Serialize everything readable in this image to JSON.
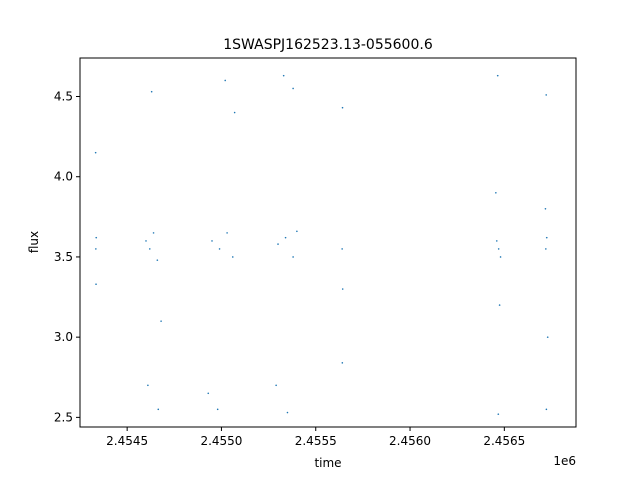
{
  "chart_data": {
    "type": "scatter",
    "title": "1SWASPJ162523.13-055600.6",
    "xlabel": "time",
    "ylabel": "flux",
    "x_offset_label": "1e6",
    "xlim": [
      2454250,
      2456880
    ],
    "ylim": [
      2.44,
      4.74
    ],
    "x_ticks": [
      2454500,
      2455000,
      2455500,
      2456000,
      2456500
    ],
    "x_tick_labels": [
      "2.4545",
      "2.4550",
      "2.4555",
      "2.4560",
      "2.4565"
    ],
    "y_ticks": [
      2.5,
      3.0,
      3.5,
      4.0,
      4.5
    ],
    "y_tick_labels": [
      "2.5",
      "3.0",
      "3.5",
      "4.0",
      "4.5"
    ],
    "grid": false,
    "marker_color": "#1f77b4",
    "series": [
      {
        "values": [
          {
            "x": 2454334,
            "y": 3.55
          },
          {
            "x": 2454336,
            "y": 3.62
          },
          {
            "x": 2454333,
            "y": 4.15
          },
          {
            "x": 2454335,
            "y": 3.33
          },
          {
            "x": 2454600,
            "y": 3.6
          },
          {
            "x": 2454620,
            "y": 3.55
          },
          {
            "x": 2454640,
            "y": 3.65
          },
          {
            "x": 2454660,
            "y": 3.48
          },
          {
            "x": 2454630,
            "y": 4.53
          },
          {
            "x": 2454665,
            "y": 2.55
          },
          {
            "x": 2454610,
            "y": 2.7
          },
          {
            "x": 2454680,
            "y": 3.1
          },
          {
            "x": 2454950,
            "y": 3.6
          },
          {
            "x": 2454990,
            "y": 3.55
          },
          {
            "x": 2455030,
            "y": 3.65
          },
          {
            "x": 2455060,
            "y": 3.5
          },
          {
            "x": 2455020,
            "y": 4.6
          },
          {
            "x": 2454980,
            "y": 2.55
          },
          {
            "x": 2454930,
            "y": 2.65
          },
          {
            "x": 2455070,
            "y": 4.4
          },
          {
            "x": 2455300,
            "y": 3.58
          },
          {
            "x": 2455340,
            "y": 3.62
          },
          {
            "x": 2455380,
            "y": 3.5
          },
          {
            "x": 2455400,
            "y": 3.66
          },
          {
            "x": 2455330,
            "y": 4.63
          },
          {
            "x": 2455350,
            "y": 2.53
          },
          {
            "x": 2455380,
            "y": 4.55
          },
          {
            "x": 2455290,
            "y": 2.7
          },
          {
            "x": 2455640,
            "y": 3.55
          },
          {
            "x": 2455642,
            "y": 4.43
          },
          {
            "x": 2455641,
            "y": 2.84
          },
          {
            "x": 2455643,
            "y": 3.3
          },
          {
            "x": 2456460,
            "y": 3.6
          },
          {
            "x": 2456470,
            "y": 3.55
          },
          {
            "x": 2456480,
            "y": 3.5
          },
          {
            "x": 2456465,
            "y": 4.63
          },
          {
            "x": 2456468,
            "y": 2.52
          },
          {
            "x": 2456475,
            "y": 3.2
          },
          {
            "x": 2456455,
            "y": 3.9
          },
          {
            "x": 2456720,
            "y": 3.55
          },
          {
            "x": 2456725,
            "y": 3.62
          },
          {
            "x": 2456722,
            "y": 4.51
          },
          {
            "x": 2456723,
            "y": 2.55
          },
          {
            "x": 2456730,
            "y": 3.0
          },
          {
            "x": 2456718,
            "y": 3.8
          }
        ]
      }
    ]
  }
}
